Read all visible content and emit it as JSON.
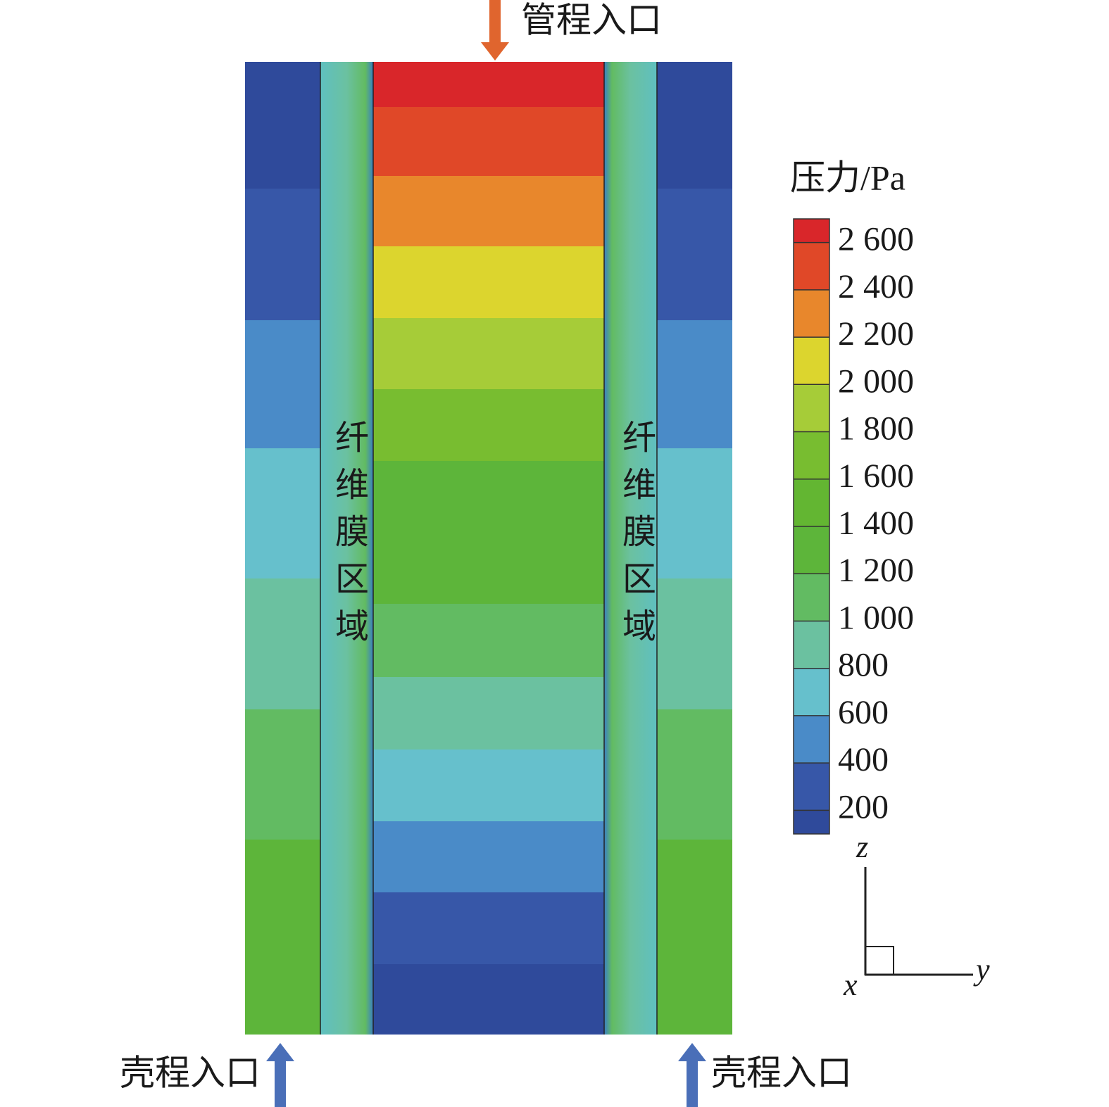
{
  "labels": {
    "tube_inlet": "管程入口",
    "shell_inlet_left": "壳程入口",
    "shell_inlet_right": "壳程入口",
    "membrane_left": "纤维膜区域",
    "membrane_right": "纤维膜区域"
  },
  "axes": {
    "z": "z",
    "y": "y",
    "x": "x"
  },
  "colorbar": {
    "title": "压力/Pa",
    "range": [
      100,
      2700
    ],
    "ticks": [
      {
        "value": 200,
        "label": "200"
      },
      {
        "value": 400,
        "label": "400"
      },
      {
        "value": 600,
        "label": "600"
      },
      {
        "value": 800,
        "label": "800"
      },
      {
        "value": 1000,
        "label": "1 000"
      },
      {
        "value": 1200,
        "label": "1 200"
      },
      {
        "value": 1400,
        "label": "1 400"
      },
      {
        "value": 1600,
        "label": "1 600"
      },
      {
        "value": 1800,
        "label": "1 800"
      },
      {
        "value": 2000,
        "label": "2 000"
      },
      {
        "value": 2200,
        "label": "2 200"
      },
      {
        "value": 2400,
        "label": "2 400"
      },
      {
        "value": 2600,
        "label": "2 600"
      }
    ],
    "colors": [
      "#2f4a9b",
      "#3757a8",
      "#4a8bc8",
      "#66c0cc",
      "#6bc1a0",
      "#62bb62",
      "#5db53a",
      "#63b632",
      "#78bd30",
      "#a6cc38",
      "#dcd52e",
      "#e8872c",
      "#e04828",
      "#d9262a"
    ]
  }
}
